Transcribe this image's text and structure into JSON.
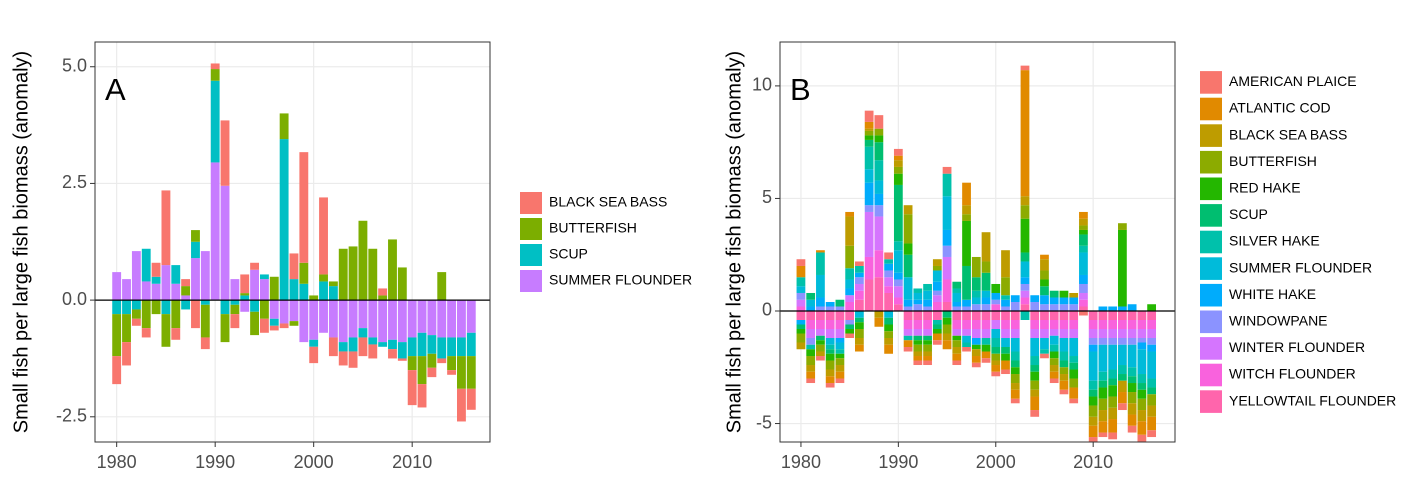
{
  "chart_data": [
    {
      "type": "bar",
      "stacked": true,
      "panel_label": "A",
      "ylabel": "Small fish per large fish biomass (anomaly)",
      "x": [
        1980,
        1981,
        1982,
        1983,
        1984,
        1985,
        1986,
        1987,
        1988,
        1989,
        1990,
        1991,
        1992,
        1993,
        1994,
        1995,
        1996,
        1997,
        1998,
        1999,
        2000,
        2001,
        2002,
        2003,
        2004,
        2005,
        2006,
        2007,
        2008,
        2009,
        2010,
        2011,
        2012,
        2013,
        2014,
        2015,
        2016
      ],
      "xlim": [
        1977.8,
        2017.9
      ],
      "xticks": [
        1980,
        1990,
        2000,
        2010
      ],
      "ylim": [
        -3.04,
        5.53
      ],
      "yticks": [
        -2.5,
        {
          "value": 0,
          "label": "0.0"
        },
        2.5,
        {
          "value": 5,
          "label": "5.0"
        }
      ],
      "grid": true,
      "hline": 0,
      "legend": "right",
      "series": [
        {
          "name": "BLACK SEA BASS",
          "color": "#F8766D",
          "values": [
            -0.6,
            -0.5,
            -0.15,
            -0.2,
            0.3,
            1.6,
            -0.25,
            0.15,
            -0.6,
            -0.25,
            0.12,
            1.4,
            -0.3,
            0.4,
            0.15,
            -0.3,
            -0.1,
            -0.1,
            0.55,
            2.37,
            -0.35,
            1.65,
            -0.4,
            -0.3,
            -0.35,
            -0.4,
            -0.3,
            0.15,
            -0.2,
            -0.05,
            -0.75,
            -0.5,
            -0.2,
            -0.1,
            -0.1,
            -0.7,
            -0.45
          ]
        },
        {
          "name": "BUTTERFISH",
          "color": "#7CAE00",
          "values": [
            -0.9,
            -0.6,
            -0.2,
            -0.6,
            -0.3,
            -0.7,
            -0.6,
            0.2,
            0.25,
            -0.7,
            0.25,
            -0.6,
            -0.2,
            0.05,
            -0.5,
            -0.4,
            0.5,
            0.55,
            -0.1,
            0.45,
            0.1,
            0.15,
            0.1,
            1.1,
            1.15,
            1.7,
            1.1,
            0.1,
            1.3,
            0.7,
            -0.3,
            -0.6,
            -0.3,
            0.6,
            -0.3,
            -0.7,
            -0.7
          ]
        },
        {
          "name": "SCUP",
          "color": "#00BFC4",
          "values": [
            -0.3,
            -0.3,
            -0.2,
            0.7,
            0.15,
            -0.3,
            0.4,
            -0.2,
            0.35,
            -0.1,
            1.75,
            -0.3,
            -0.1,
            0.1,
            -0.25,
            0.1,
            -0.15,
            3.45,
            0.45,
            0.35,
            -0.15,
            0.4,
            0.3,
            -0.2,
            -0.3,
            -0.2,
            -0.15,
            -0.1,
            -0.2,
            -0.35,
            -0.4,
            -0.5,
            -0.4,
            -0.45,
            -0.4,
            -0.4,
            -0.5
          ]
        },
        {
          "name": "SUMMER FLOUNDER",
          "color": "#C77CFF",
          "values": [
            0.6,
            0.45,
            1.05,
            0.4,
            0.35,
            0.75,
            0.35,
            0.1,
            0.9,
            1.05,
            2.95,
            2.45,
            0.45,
            -0.25,
            0.65,
            0.45,
            -0.4,
            -0.5,
            -0.45,
            -0.9,
            -0.85,
            -0.7,
            -0.8,
            -0.9,
            -0.8,
            -0.6,
            -0.8,
            -0.9,
            -0.85,
            -0.9,
            -0.8,
            -0.7,
            -0.75,
            -0.8,
            -0.8,
            -0.8,
            -0.7
          ]
        }
      ]
    },
    {
      "type": "bar",
      "stacked": true,
      "panel_label": "B",
      "ylabel": "Small fish per large fish biomass (anomaly)",
      "x": [
        1980,
        1981,
        1982,
        1983,
        1984,
        1985,
        1986,
        1987,
        1988,
        1989,
        1990,
        1991,
        1992,
        1993,
        1994,
        1995,
        1996,
        1997,
        1998,
        1999,
        2000,
        2001,
        2002,
        2003,
        2004,
        2005,
        2006,
        2007,
        2008,
        2009,
        2010,
        2011,
        2012,
        2013,
        2014,
        2015,
        2016
      ],
      "xlim": [
        1977.85,
        2018.4
      ],
      "xticks": [
        1980,
        1990,
        2000,
        2010
      ],
      "ylim": [
        -5.82,
        11.95
      ],
      "yticks": [
        -5,
        0,
        5,
        10
      ],
      "grid": true,
      "hline": 0,
      "legend": "right",
      "series": [
        {
          "name": "AMERICAN PLAICE",
          "color": "#F8766D",
          "values": [
            0.3,
            -0.2,
            -0.2,
            -0.2,
            -0.2,
            -0.2,
            0.2,
            0.5,
            0.6,
            0.3,
            0.3,
            -0.2,
            -0.2,
            -0.2,
            -0.2,
            0.3,
            -0.2,
            -0.2,
            -0.2,
            -0.2,
            -0.2,
            -0.2,
            -0.2,
            0.2,
            -0.3,
            -0.2,
            -0.2,
            -0.2,
            -0.2,
            -0.2,
            -0.2,
            -0.2,
            -0.3,
            -0.3,
            -0.3,
            -0.3,
            -0.3
          ]
        },
        {
          "name": "ATLANTIC COD",
          "color": "#E18A00",
          "values": [
            0.5,
            -0.3,
            0.1,
            -0.3,
            -0.3,
            0.2,
            -0.3,
            0.3,
            -0.4,
            -0.4,
            0.2,
            -0.3,
            -0.2,
            -0.2,
            -0.3,
            -0.4,
            -0.3,
            1.0,
            -0.3,
            -0.3,
            -0.3,
            -0.4,
            -0.4,
            5.6,
            -0.6,
            0.2,
            -0.3,
            -0.4,
            -0.5,
            0.3,
            -0.5,
            -0.5,
            -0.6,
            -0.5,
            -0.5,
            -0.6,
            -0.6
          ]
        },
        {
          "name": "BLACK SEA BASS",
          "color": "#BE9C00",
          "values": [
            -0.3,
            -0.3,
            -0.2,
            -0.3,
            -0.3,
            1.3,
            -0.3,
            0.1,
            -0.3,
            -0.3,
            0.3,
            0.4,
            -0.2,
            -0.2,
            0.3,
            -0.3,
            -0.3,
            0.4,
            -0.3,
            1.3,
            -0.2,
            1.2,
            -0.3,
            0.4,
            -0.3,
            0.5,
            -0.3,
            -0.3,
            0.2,
            0.3,
            -0.4,
            -0.5,
            -0.5,
            -0.5,
            -0.5,
            -0.5,
            -0.5
          ]
        },
        {
          "name": "BUTTERFISH",
          "color": "#8CAB00",
          "values": [
            -0.4,
            -0.4,
            -0.3,
            -0.4,
            -0.3,
            1.0,
            -0.4,
            0.2,
            0.3,
            -0.3,
            0.3,
            1.3,
            -0.3,
            -0.3,
            0.2,
            -0.4,
            -0.3,
            0.3,
            0.9,
            0.5,
            -0.3,
            0.8,
            -0.4,
            0.6,
            -0.4,
            0.4,
            -0.3,
            -0.3,
            -0.4,
            0.2,
            -0.5,
            -0.5,
            -0.5,
            0.3,
            -0.5,
            -0.5,
            -0.5
          ]
        },
        {
          "name": "RED HAKE",
          "color": "#24B700",
          "values": [
            -0.2,
            -0.3,
            -0.2,
            -0.3,
            -0.2,
            -0.2,
            -0.3,
            0.2,
            0.3,
            -0.3,
            0.5,
            0.5,
            -0.2,
            -0.2,
            -0.2,
            -0.3,
            -0.2,
            2.0,
            -0.2,
            -0.3,
            0.4,
            -0.3,
            -0.3,
            1.5,
            -0.4,
            0.3,
            -0.3,
            0.3,
            -0.4,
            0.2,
            -0.4,
            -0.5,
            -0.5,
            3.4,
            -0.4,
            -0.4,
            0.3
          ]
        },
        {
          "name": "SCUP",
          "color": "#00BE70",
          "values": [
            -0.2,
            0.3,
            -0.2,
            -0.2,
            0.3,
            -0.2,
            -0.2,
            0.3,
            0.8,
            -0.3,
            2.5,
            1.0,
            -0.2,
            -0.2,
            -0.2,
            -0.3,
            0.3,
            1.5,
            0.6,
            0.8,
            -0.3,
            -0.3,
            -0.3,
            0.4,
            -0.3,
            0.4,
            0.3,
            -0.3,
            -0.3,
            0.5,
            -0.3,
            -0.3,
            -0.3,
            -0.3,
            -0.3,
            -0.3,
            -0.3
          ]
        },
        {
          "name": "SILVER HAKE",
          "color": "#00C1AB",
          "values": [
            0.4,
            -0.2,
            1.0,
            -0.2,
            -0.2,
            0.5,
            0.3,
            1.0,
            0.9,
            0.2,
            0.4,
            -0.2,
            0.2,
            0.3,
            -0.2,
            1.0,
            0.2,
            -0.2,
            0.3,
            -0.3,
            -0.4,
            0.2,
            -0.4,
            -0.4,
            -0.4,
            -0.2,
            -0.3,
            -0.4,
            -0.3,
            0.3,
            -0.4,
            -0.4,
            -0.4,
            -0.4,
            -0.4,
            -0.4,
            -0.4
          ]
        },
        {
          "name": "SUMMER FLOUNDER",
          "color": "#00BBDA",
          "values": [
            0.3,
            0.3,
            1.0,
            -0.3,
            -0.3,
            0.4,
            -0.3,
            0.6,
            0.6,
            -0.3,
            1.0,
            1.0,
            0.3,
            0.4,
            0.5,
            1.5,
            0.4,
            -0.3,
            0.3,
            0.3,
            -0.4,
            -0.4,
            -0.6,
            0.7,
            -0.8,
            -0.5,
            -0.4,
            -0.6,
            -0.8,
            1.0,
            -1.3,
            -1.2,
            -1.1,
            -0.9,
            -1.0,
            -1.1,
            -1.2
          ]
        },
        {
          "name": "WHITE HAKE",
          "color": "#00ACFC",
          "values": [
            -0.2,
            0.2,
            0.4,
            0.2,
            -0.2,
            0.3,
            0.2,
            1.0,
            0.5,
            0.3,
            0.3,
            0.3,
            0.2,
            0.3,
            0.4,
            0.7,
            0.2,
            0.3,
            -0.3,
            0.3,
            0.3,
            0.3,
            0.3,
            0.3,
            0.3,
            0.4,
            0.3,
            0.3,
            0.3,
            0.4,
            -0.3,
            0.2,
            0.2,
            0.2,
            0.3,
            -0.3,
            -0.3
          ]
        },
        {
          "name": "WINDOWPANE",
          "color": "#8B93FF",
          "values": [
            0.3,
            -0.3,
            0.2,
            0.2,
            0.2,
            -0.2,
            0.3,
            0.3,
            0.5,
            0.3,
            0.3,
            0.2,
            0.3,
            0.2,
            0.2,
            0.5,
            0.2,
            0.2,
            0.3,
            0.3,
            0.2,
            0.2,
            0.4,
            0.3,
            0.4,
            0.3,
            0.3,
            0.3,
            0.3,
            0.4,
            -0.3,
            -0.3,
            -0.3,
            -0.3,
            -0.3,
            -0.2,
            -0.3
          ]
        },
        {
          "name": "WINTER FLOUNDER",
          "color": "#D575FE",
          "values": [
            0.3,
            -0.4,
            -0.3,
            -0.4,
            -0.4,
            0.3,
            0.3,
            2.0,
            1.5,
            0.4,
            0.5,
            -0.3,
            -0.3,
            -0.3,
            0.3,
            1.0,
            -0.3,
            -0.3,
            -0.4,
            -0.4,
            -0.4,
            -0.4,
            -0.4,
            0.3,
            -0.4,
            -0.4,
            -0.3,
            -0.4,
            -0.4,
            0.3,
            -0.4,
            -0.4,
            -0.4,
            -0.4,
            -0.4,
            -0.4,
            -0.4
          ]
        },
        {
          "name": "WITCH FLOUNDER",
          "color": "#F962DD",
          "values": [
            0.2,
            -0.4,
            -0.4,
            -0.4,
            -0.4,
            0.4,
            0.4,
            1.0,
            1.2,
            0.3,
            0.3,
            -0.4,
            -0.4,
            -0.4,
            0.4,
            1.0,
            -0.4,
            -0.4,
            -0.4,
            -0.4,
            0.3,
            -0.4,
            -0.4,
            0.3,
            -0.4,
            -0.4,
            -0.4,
            -0.4,
            -0.4,
            0.3,
            -0.4,
            -0.4,
            -0.4,
            -0.4,
            -0.4,
            -0.4,
            -0.4
          ]
        },
        {
          "name": "YELLOWTAIL FLOUNDER",
          "color": "#FF65AC",
          "values": [
            -0.4,
            -0.4,
            -0.4,
            -0.4,
            -0.4,
            -0.4,
            0.5,
            1.4,
            1.5,
            0.8,
            0.3,
            -0.4,
            -0.4,
            -0.4,
            -0.4,
            0.4,
            -0.4,
            -0.4,
            -0.4,
            -0.4,
            -0.4,
            -0.4,
            -0.4,
            0.3,
            -0.4,
            -0.4,
            -0.4,
            -0.4,
            -0.4,
            0.2,
            -0.4,
            -0.4,
            -0.4,
            -0.4,
            -0.4,
            -0.4,
            -0.4
          ]
        }
      ]
    }
  ]
}
